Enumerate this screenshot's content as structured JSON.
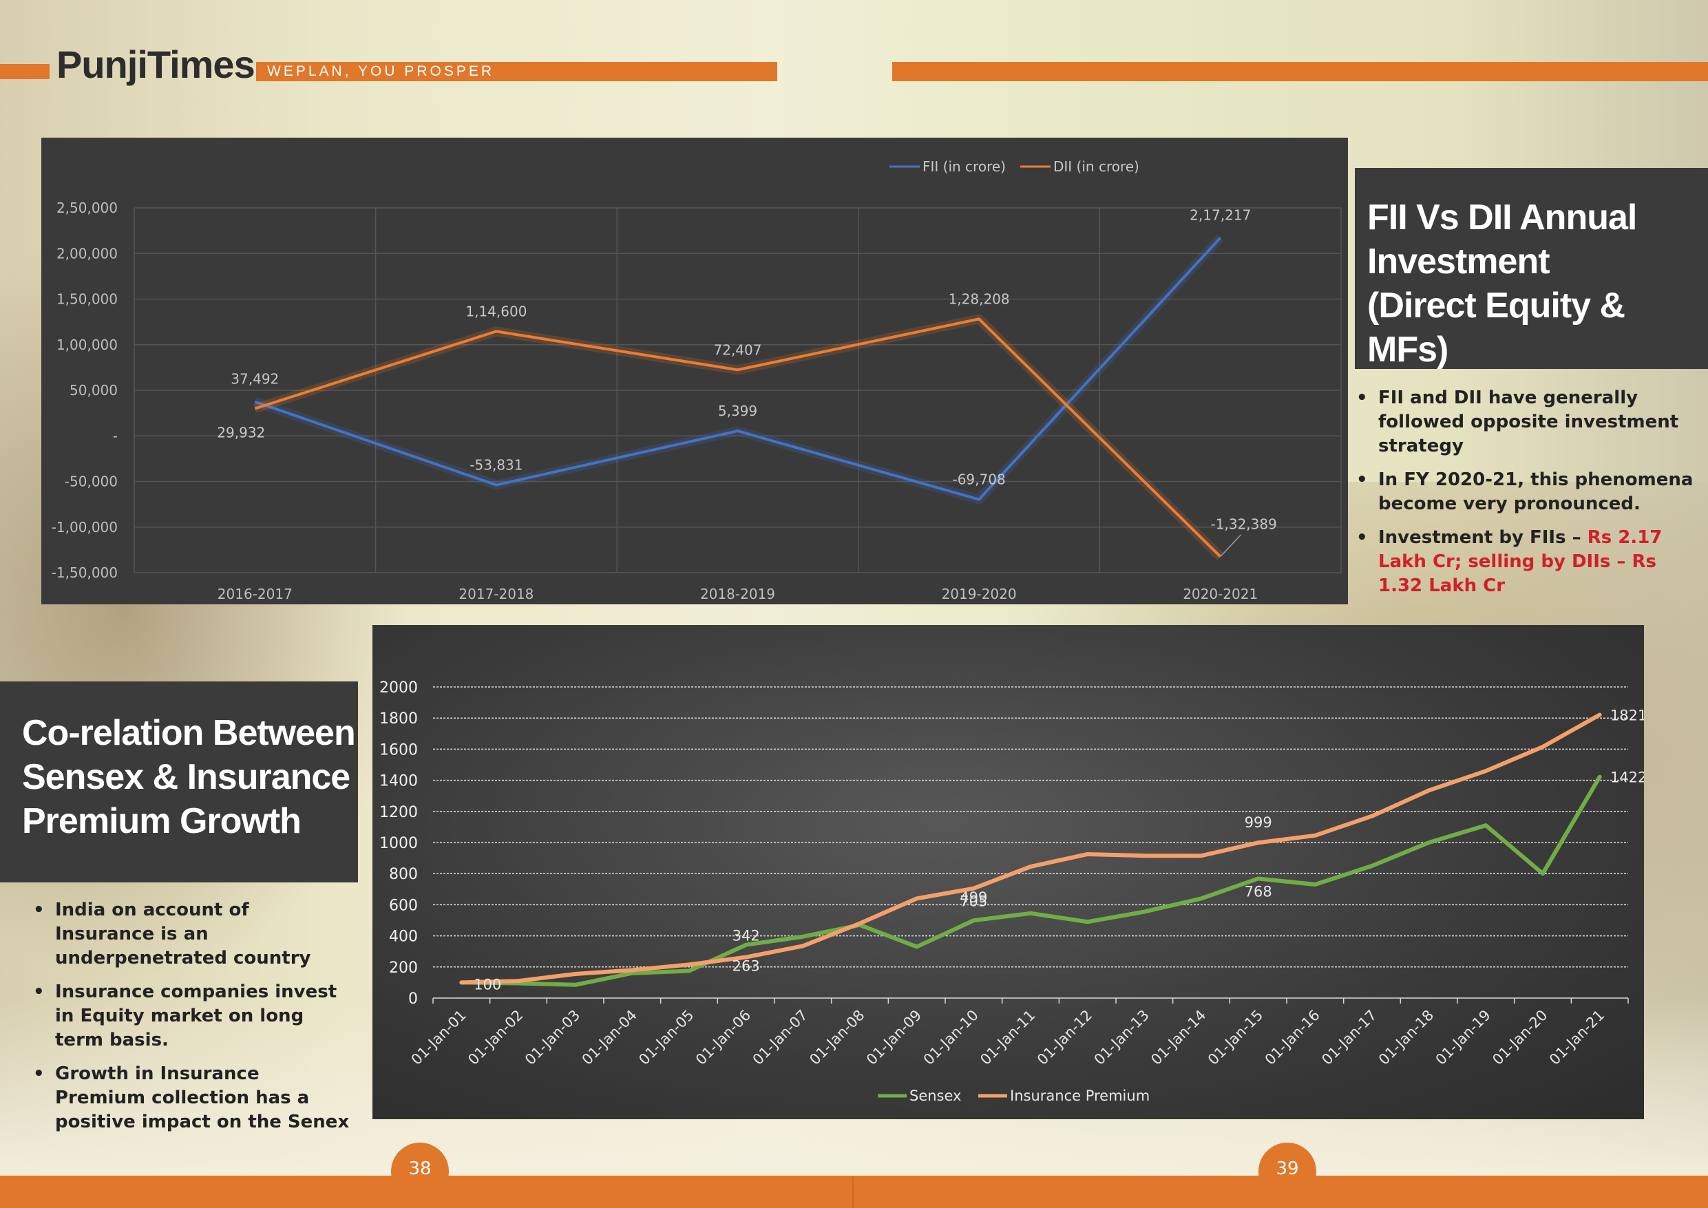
{
  "header": {
    "logo_text": "PunjiTimes",
    "tagline": "WEPLAN, YOU PROSPER",
    "accent_color": "#e0772a"
  },
  "right_section": {
    "title_lines": [
      "FII Vs DII Annual",
      "Investment",
      "(Direct Equity & MFs)"
    ],
    "bullets": [
      {
        "text": "FII and DII have  generally followed opposite investment strategy",
        "highlight": ""
      },
      {
        "text": "In FY 2020-21, this phenomena become very pronounced.",
        "highlight": ""
      },
      {
        "text": "Investment by FIIs – ",
        "highlight": "Rs 2.17 Lakh Cr; selling by DIIs – Rs 1.32 Lakh Cr"
      }
    ]
  },
  "left_section": {
    "title_lines": [
      "Co-relation Between",
      "Sensex & Insurance",
      "Premium Growth"
    ],
    "bullets": [
      "India on account of Insurance is an underpenetrated country",
      "Insurance companies invest in Equity market on long term basis.",
      "Growth in Insurance Premium collection has a positive impact on the Senex"
    ]
  },
  "footer": {
    "page_left": "38",
    "page_right": "39"
  },
  "chart_data": [
    {
      "type": "line",
      "title": "",
      "x": [
        "2016-2017",
        "2017-2018",
        "2018-2019",
        "2019-2020",
        "2020-2021"
      ],
      "ylim": [
        -150000,
        250000
      ],
      "yticks": [
        "-1,50,000",
        "-1,00,000",
        "-50,000",
        "-",
        "50,000",
        "1,00,000",
        "1,50,000",
        "2,00,000",
        "2,50,000"
      ],
      "grid": true,
      "legend": "top",
      "background": "#3a3a3a",
      "series": [
        {
          "name": "FII (in crore)",
          "color": "#4472c4",
          "values": [
            37492,
            -53831,
            5399,
            -69708,
            217217
          ],
          "labels": [
            "37,492",
            "-53,831",
            "5,399",
            "-69,708",
            "2,17,217"
          ]
        },
        {
          "name": "DII (in crore)",
          "color": "#ed7d31",
          "values": [
            29932,
            114600,
            72407,
            128208,
            -132389
          ],
          "labels": [
            "29,932",
            "1,14,600",
            "72,407",
            "1,28,208",
            "-1,32,389"
          ]
        }
      ]
    },
    {
      "type": "line",
      "title": "",
      "x": [
        "01-Jan-01",
        "01-Jan-02",
        "01-Jan-03",
        "01-Jan-04",
        "01-Jan-05",
        "01-Jan-06",
        "01-Jan-07",
        "01-Jan-08",
        "01-Jan-09",
        "01-Jan-10",
        "01-Jan-11",
        "01-Jan-12",
        "01-Jan-13",
        "01-Jan-14",
        "01-Jan-15",
        "01-Jan-16",
        "01-Jan-17",
        "01-Jan-18",
        "01-Jan-19",
        "01-Jan-20",
        "01-Jan-21"
      ],
      "ylim": [
        0,
        2000
      ],
      "yticks": [
        0,
        200,
        400,
        600,
        800,
        1000,
        1200,
        1400,
        1600,
        1800,
        2000
      ],
      "grid": true,
      "legend": "bottom",
      "series": [
        {
          "name": "Sensex",
          "color": "#70ad47",
          "values": [
            100,
            95,
            85,
            160,
            175,
            342,
            395,
            470,
            330,
            499,
            545,
            490,
            555,
            640,
            768,
            730,
            850,
            1000,
            1110,
            800,
            1422
          ]
        },
        {
          "name": "Insurance Premium",
          "color": "#f4a06a",
          "values": [
            100,
            110,
            155,
            180,
            215,
            263,
            335,
            480,
            640,
            705,
            845,
            925,
            915,
            915,
            999,
            1045,
            1170,
            1335,
            1460,
            1615,
            1821
          ]
        }
      ],
      "data_labels": [
        {
          "series": "Sensex",
          "index": 0,
          "text": "100"
        },
        {
          "series": "Sensex",
          "index": 5,
          "text": "342"
        },
        {
          "series": "Insurance Premium",
          "index": 5,
          "text": "263"
        },
        {
          "series": "Sensex",
          "index": 9,
          "text": "499"
        },
        {
          "series": "Insurance Premium",
          "index": 9,
          "text": "705"
        },
        {
          "series": "Insurance Premium",
          "index": 14,
          "text": "999"
        },
        {
          "series": "Sensex",
          "index": 14,
          "text": "768"
        },
        {
          "series": "Insurance Premium",
          "index": 20,
          "text": "1821"
        },
        {
          "series": "Sensex",
          "index": 20,
          "text": "1422"
        }
      ]
    }
  ]
}
